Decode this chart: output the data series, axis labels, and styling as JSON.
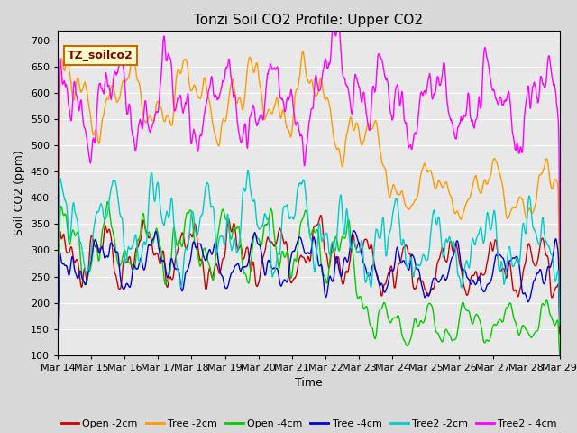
{
  "title": "Tonzi Soil CO2 Profile: Upper CO2",
  "xlabel": "Time",
  "ylabel": "Soil CO2 (ppm)",
  "label_text": "TZ_soilco2",
  "ylim": [
    100,
    720
  ],
  "yticks": [
    100,
    150,
    200,
    250,
    300,
    350,
    400,
    450,
    500,
    550,
    600,
    650,
    700
  ],
  "series": {
    "Open -2cm": {
      "color": "#cc0000"
    },
    "Tree -2cm": {
      "color": "#ff9900"
    },
    "Open -4cm": {
      "color": "#00cc00"
    },
    "Tree -4cm": {
      "color": "#0000dd"
    },
    "Tree2 -2cm": {
      "color": "#00cccc"
    },
    "Tree2 - 4cm": {
      "color": "#ff00ff"
    }
  },
  "fig_bg": "#d8d8d8",
  "plot_bg": "#e8e8e8",
  "grid_color": "#ffffff",
  "title_fontsize": 11,
  "axis_fontsize": 9,
  "tick_fontsize": 8,
  "legend_fontsize": 8
}
